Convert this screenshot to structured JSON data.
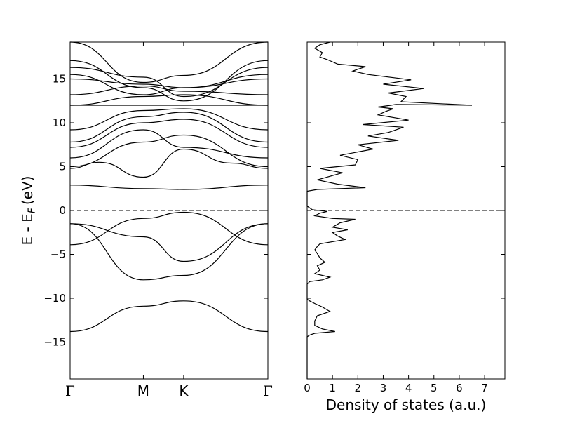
{
  "chart_data": [
    {
      "type": "line",
      "title": "",
      "xlabel": "",
      "ylabel": "E - E",
      "ylabel_subscript": "F",
      "ylabel_unit": "(eV)",
      "ylim": [
        -19.2,
        19.2
      ],
      "xlim": [
        0,
        2.7
      ],
      "y_ticks": [
        -15,
        -10,
        -5,
        0,
        5,
        10,
        15
      ],
      "y_tick_labels": [
        "−15",
        "−10",
        "−5",
        "0",
        "5",
        "10",
        "15"
      ],
      "k_points": [
        {
          "label": "Γ",
          "x": 0
        },
        {
          "label": "M",
          "x": 1.0
        },
        {
          "label": "K",
          "x": 1.55
        },
        {
          "label": "Γ",
          "x": 2.7
        }
      ],
      "fermi_level": 0,
      "fermi_style": "dashed",
      "series": [
        {
          "x": [
            0,
            1.0,
            1.55,
            2.7
          ],
          "values": [
            -13.8,
            -10.9,
            -10.3,
            -13.8
          ]
        },
        {
          "x": [
            0,
            1.0,
            1.55,
            2.7
          ],
          "values": [
            -1.5,
            -7.9,
            -7.4,
            -1.5
          ]
        },
        {
          "x": [
            0,
            1.0,
            1.55,
            2.7
          ],
          "values": [
            -1.5,
            -3.0,
            -5.8,
            -1.5
          ]
        },
        {
          "x": [
            0,
            1.0,
            1.55,
            2.7
          ],
          "values": [
            -3.9,
            -0.9,
            -0.2,
            -3.9
          ]
        },
        {
          "x": [
            0,
            1.0,
            1.55,
            2.7
          ],
          "values": [
            2.9,
            2.5,
            2.4,
            2.9
          ]
        },
        {
          "x": [
            0,
            0.4,
            1.0,
            1.55,
            2.2,
            2.7
          ],
          "values": [
            4.8,
            5.5,
            3.8,
            7.0,
            5.4,
            4.8
          ]
        },
        {
          "x": [
            0,
            1.0,
            1.55,
            2.7
          ],
          "values": [
            5.0,
            7.8,
            8.6,
            5.0
          ]
        },
        {
          "x": [
            0,
            1.0,
            1.55,
            2.7
          ],
          "values": [
            6.0,
            9.2,
            7.2,
            6.0
          ]
        },
        {
          "x": [
            0,
            1.0,
            1.55,
            2.7
          ],
          "values": [
            7.2,
            10.0,
            10.4,
            7.2
          ]
        },
        {
          "x": [
            0,
            1.0,
            1.55,
            2.7
          ],
          "values": [
            7.8,
            10.7,
            11.2,
            7.8
          ]
        },
        {
          "x": [
            0,
            1.0,
            1.55,
            2.7
          ],
          "values": [
            9.2,
            11.4,
            11.6,
            9.2
          ]
        },
        {
          "x": [
            0,
            1.0,
            1.55,
            2.7
          ],
          "values": [
            12.0,
            12.0,
            12.0,
            12.0
          ]
        },
        {
          "x": [
            0,
            1.0,
            1.55,
            2.7
          ],
          "values": [
            12.0,
            13.0,
            13.2,
            12.0
          ]
        },
        {
          "x": [
            0,
            1.0,
            1.55,
            2.7
          ],
          "values": [
            13.2,
            14.2,
            13.6,
            13.2
          ]
        },
        {
          "x": [
            0,
            1.0,
            1.55,
            2.7
          ],
          "values": [
            15.0,
            14.4,
            14.0,
            15.0
          ]
        },
        {
          "x": [
            0,
            1.0,
            1.55,
            2.7
          ],
          "values": [
            15.5,
            13.2,
            14.0,
            15.5
          ]
        },
        {
          "x": [
            0,
            1.0,
            1.55,
            2.7
          ],
          "values": [
            16.3,
            15.2,
            13.0,
            16.3
          ]
        },
        {
          "x": [
            0,
            1.0,
            1.55,
            2.7
          ],
          "values": [
            17.1,
            14.0,
            12.5,
            17.1
          ]
        },
        {
          "x": [
            0,
            1.0,
            1.55,
            2.7
          ],
          "values": [
            19.2,
            14.6,
            15.4,
            19.2
          ]
        }
      ]
    },
    {
      "type": "line",
      "title": "",
      "xlabel": "Density of states (a.u.)",
      "ylabel": "",
      "xlim": [
        0,
        7.8
      ],
      "ylim": [
        -19.2,
        19.2
      ],
      "x_ticks": [
        0,
        1,
        2,
        3,
        4,
        5,
        6,
        7
      ],
      "x_tick_labels": [
        "0",
        "1",
        "2",
        "3",
        "4",
        "5",
        "6",
        "7"
      ],
      "y_ticks": [
        -15,
        -10,
        -5,
        0,
        5,
        10,
        15
      ],
      "fermi_level": 0,
      "fermi_style": "dashed",
      "series": [
        {
          "dos": [
            0,
            0,
            0.1,
            0.3,
            1.1,
            0.6,
            0.3,
            0.3,
            0.4,
            0.9,
            0.6,
            0.3,
            0.1,
            0,
            0,
            0,
            0,
            0.1,
            0.6,
            0.9,
            0.3,
            0.5,
            0.4,
            0.7,
            0.5,
            0.4,
            0.3,
            0.4,
            0.5,
            1.5,
            1.2,
            1.0,
            1.6,
            1.0,
            1.3,
            1.9,
            1.0,
            0.3,
            0.5,
            0.8,
            0.2,
            0,
            0,
            0.4,
            2.3,
            1.2,
            0.4,
            1.4,
            0.5,
            1.9,
            2.0,
            1.3,
            2.6,
            2.0,
            3.6,
            2.4,
            3.2,
            3.8,
            2.2,
            4.0,
            2.8,
            3.1,
            3.4,
            2.8,
            3.3,
            3.5,
            6.5,
            3.7,
            3.9,
            3.2,
            4.6,
            3.0,
            4.1,
            2.4,
            1.8,
            2.3,
            1.2,
            0.8,
            0.5,
            0.6,
            0.3,
            0.5,
            0.9
          ],
          "energy": [
            -19.2,
            -14.4,
            -14.2,
            -14.0,
            -13.8,
            -13.5,
            -13.1,
            -12.6,
            -12.0,
            -11.5,
            -11.0,
            -10.6,
            -10.3,
            -10.1,
            -9.5,
            -8.5,
            -8.4,
            -8.1,
            -7.9,
            -7.6,
            -7.2,
            -6.8,
            -6.3,
            -5.9,
            -5.4,
            -4.9,
            -4.5,
            -4.1,
            -3.8,
            -3.3,
            -2.9,
            -2.5,
            -2.2,
            -1.9,
            -1.4,
            -1.0,
            -0.9,
            -0.6,
            -0.3,
            -0.1,
            0.1,
            0.5,
            2.2,
            2.4,
            2.6,
            3.0,
            3.5,
            4.3,
            4.8,
            5.2,
            5.8,
            6.3,
            7.0,
            7.5,
            8.0,
            8.5,
            8.9,
            9.5,
            9.8,
            10.3,
            10.9,
            11.3,
            11.6,
            11.8,
            12.0,
            12.1,
            12.0,
            12.4,
            13.0,
            13.4,
            13.9,
            14.4,
            14.9,
            15.5,
            15.9,
            16.4,
            16.7,
            17.2,
            17.5,
            18.0,
            18.5,
            18.9,
            19.2
          ]
        }
      ]
    }
  ]
}
